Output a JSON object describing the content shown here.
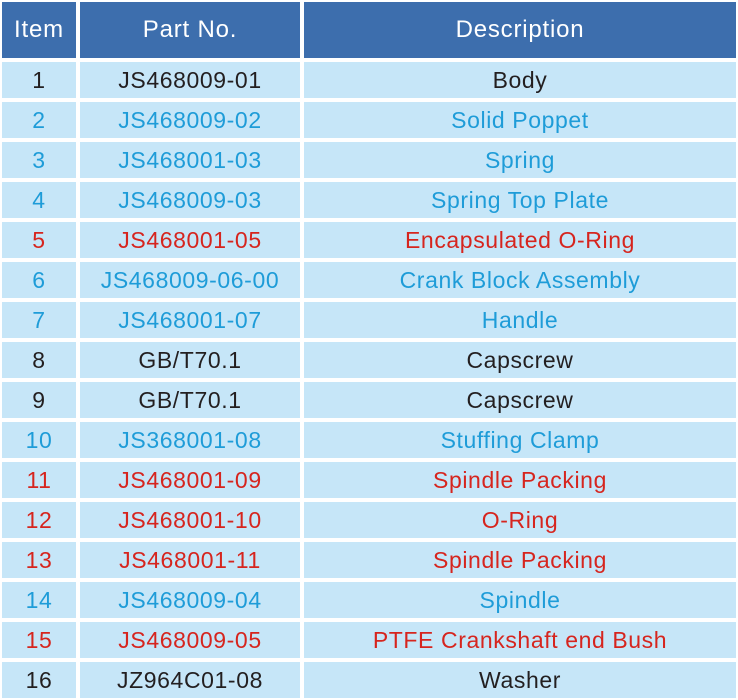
{
  "colors": {
    "header_bg": "#3D6EAD",
    "header_text": "#FFFFFF",
    "row_bg": "#C6E6F8",
    "gap": "#FFFFFF",
    "text_black": "#231F20",
    "text_blue": "#1E9CD8",
    "text_red": "#D6251E"
  },
  "table": {
    "columns": [
      {
        "key": "item",
        "label": "Item"
      },
      {
        "key": "part_no",
        "label": "Part No."
      },
      {
        "key": "description",
        "label": "Description"
      }
    ],
    "rows": [
      {
        "item": "1",
        "part_no": "JS468009-01",
        "description": "Body",
        "color": "black"
      },
      {
        "item": "2",
        "part_no": "JS468009-02",
        "description": "Solid Poppet",
        "color": "blue"
      },
      {
        "item": "3",
        "part_no": "JS468001-03",
        "description": "Spring",
        "color": "blue"
      },
      {
        "item": "4",
        "part_no": "JS468009-03",
        "description": "Spring Top Plate",
        "color": "blue"
      },
      {
        "item": "5",
        "part_no": "JS468001-05",
        "description": "Encapsulated O-Ring",
        "color": "red"
      },
      {
        "item": "6",
        "part_no": "JS468009-06-00",
        "description": "Crank Block Assembly",
        "color": "blue"
      },
      {
        "item": "7",
        "part_no": "JS468001-07",
        "description": "Handle",
        "color": "blue"
      },
      {
        "item": "8",
        "part_no": "GB/T70.1",
        "description": "Capscrew",
        "color": "black"
      },
      {
        "item": "9",
        "part_no": "GB/T70.1",
        "description": "Capscrew",
        "color": "black"
      },
      {
        "item": "10",
        "part_no": "JS368001-08",
        "description": "Stuffing Clamp",
        "color": "blue"
      },
      {
        "item": "11",
        "part_no": "JS468001-09",
        "description": "Spindle Packing",
        "color": "red"
      },
      {
        "item": "12",
        "part_no": "JS468001-10",
        "description": "O-Ring",
        "color": "red"
      },
      {
        "item": "13",
        "part_no": "JS468001-11",
        "description": "Spindle Packing",
        "color": "red"
      },
      {
        "item": "14",
        "part_no": "JS468009-04",
        "description": "Spindle",
        "color": "blue"
      },
      {
        "item": "15",
        "part_no": "JS468009-05",
        "description": "PTFE Crankshaft end Bush",
        "color": "red"
      },
      {
        "item": "16",
        "part_no": "JZ964C01-08",
        "description": "Washer",
        "color": "black"
      }
    ]
  }
}
